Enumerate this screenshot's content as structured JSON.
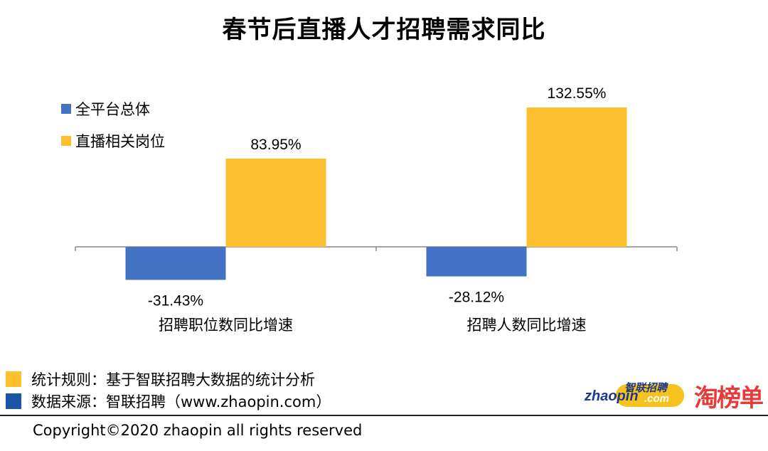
{
  "title": "春节后直播人才招聘需求同比",
  "chart_data": {
    "type": "bar",
    "categories": [
      "招聘职位数同比增速",
      "招聘人数同比增速"
    ],
    "series": [
      {
        "name": "全平台总体",
        "color": "#4472c4",
        "values": [
          -31.43,
          -28.12
        ],
        "labels": [
          "-31.43%",
          "-28.12%"
        ]
      },
      {
        "name": "直播相关岗位",
        "color": "#fcc02e",
        "values": [
          83.95,
          132.55
        ],
        "labels": [
          "83.95%",
          "132.55%"
        ]
      }
    ],
    "ylim": [
      -40,
      140
    ],
    "legend": "top-left",
    "grid": false
  },
  "footer": {
    "rule_text": "统计规则：基于智联招聘大数据的统计分析",
    "source_text": "数据来源：智联招聘（www.zhaopin.com）",
    "rule_color": "#fcc02e",
    "source_color": "#1a56a8",
    "copyright": "Copyright©2020 zhaopin all rights reserved"
  },
  "logos": {
    "zhaopin_en": "zhaopin",
    "zhaopin_cn": "智联招聘",
    "zhaopin_com": ".com",
    "taobangdan": "淘榜单"
  }
}
